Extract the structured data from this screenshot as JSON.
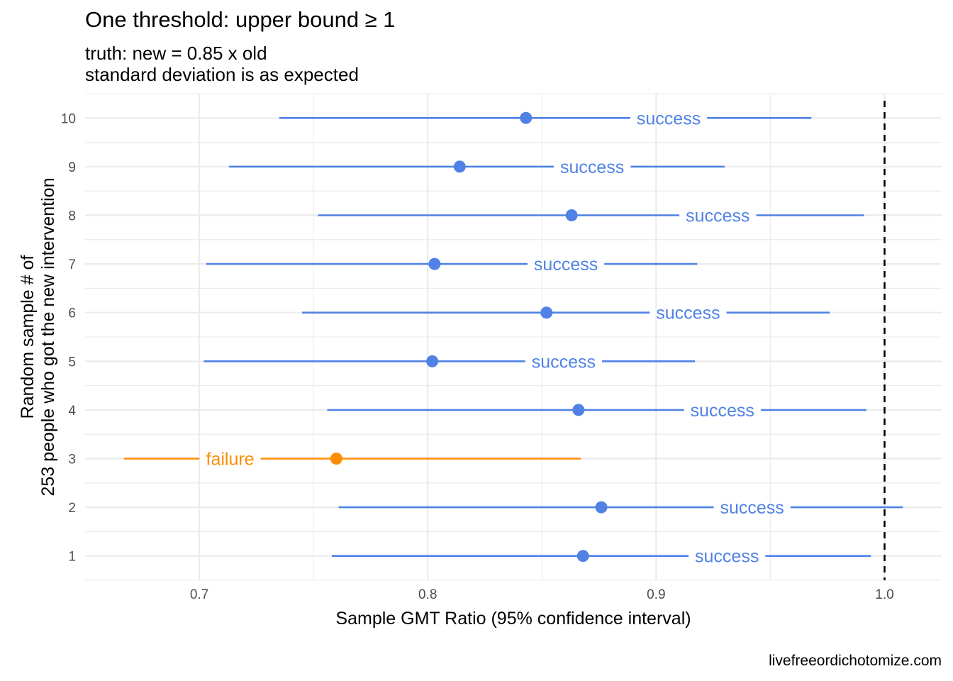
{
  "title": "One threshold: upper bound ≥ 1",
  "subtitle_lines": [
    "truth: new = 0.85 x old",
    "standard deviation is as expected"
  ],
  "caption": "livefreeordichotomize.com",
  "chart_data": {
    "type": "scatter",
    "xlabel": "Sample GMT Ratio (95% confidence interval)",
    "ylabel_lines": [
      "Random sample # of",
      "253 people who got the new intervention"
    ],
    "xlim": [
      0.65,
      1.025
    ],
    "ylim": [
      0.5,
      10.5
    ],
    "x_ticks": [
      "0.7",
      "0.8",
      "0.9",
      "1.0"
    ],
    "y_ticks": [
      "1",
      "2",
      "3",
      "4",
      "5",
      "6",
      "7",
      "8",
      "9",
      "10"
    ],
    "reference_line": {
      "x": 1.0,
      "style": "dashed"
    },
    "grid": true,
    "colors": {
      "success": "#5082E5",
      "failure": "#FF8C00",
      "grid": "#EBEBEB",
      "reference": "#000000"
    },
    "points": [
      {
        "sample": 1,
        "estimate": 0.868,
        "lower": 0.758,
        "upper": 0.994,
        "result": "success"
      },
      {
        "sample": 2,
        "estimate": 0.876,
        "lower": 0.761,
        "upper": 1.008,
        "result": "success"
      },
      {
        "sample": 3,
        "estimate": 0.76,
        "lower": 0.667,
        "upper": 0.867,
        "result": "failure"
      },
      {
        "sample": 4,
        "estimate": 0.866,
        "lower": 0.756,
        "upper": 0.992,
        "result": "success"
      },
      {
        "sample": 5,
        "estimate": 0.802,
        "lower": 0.702,
        "upper": 0.917,
        "result": "success"
      },
      {
        "sample": 6,
        "estimate": 0.852,
        "lower": 0.745,
        "upper": 0.976,
        "result": "success"
      },
      {
        "sample": 7,
        "estimate": 0.803,
        "lower": 0.703,
        "upper": 0.918,
        "result": "success"
      },
      {
        "sample": 8,
        "estimate": 0.863,
        "lower": 0.752,
        "upper": 0.991,
        "result": "success"
      },
      {
        "sample": 9,
        "estimate": 0.814,
        "lower": 0.713,
        "upper": 0.93,
        "result": "success"
      },
      {
        "sample": 10,
        "estimate": 0.843,
        "lower": 0.735,
        "upper": 0.968,
        "result": "success"
      }
    ]
  }
}
